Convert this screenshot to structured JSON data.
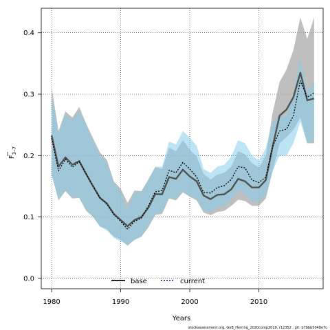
{
  "chart_data": {
    "type": "line",
    "xlabel": "Years",
    "ylabel_main": "F",
    "ylabel_sub": "3–7",
    "xlim": [
      1978.5,
      2019.3
    ],
    "ylim": [
      -0.017,
      0.44
    ],
    "x_ticks": [
      1980,
      1990,
      2000,
      2010
    ],
    "y_ticks": [
      0.0,
      0.1,
      0.2,
      0.3,
      0.4
    ],
    "y_tick_labels": [
      "0.0",
      "0.1",
      "0.2",
      "0.3",
      "0.4"
    ],
    "grid": true,
    "legend_position": "bottom-center",
    "colors": {
      "base_band": "#a9a9a9",
      "current_band": "#87ceeb",
      "base_line": "#000000",
      "current_line": "#1b3a6b",
      "grid": "#000000"
    },
    "x": [
      1980,
      1981,
      1982,
      1983,
      1984,
      1985,
      1986,
      1987,
      1988,
      1989,
      1990,
      1991,
      1992,
      1993,
      1994,
      1995,
      1996,
      1997,
      1998,
      1999,
      2000,
      2001,
      2002,
      2003,
      2004,
      2005,
      2006,
      2007,
      2008,
      2009,
      2010,
      2011,
      2012,
      2013,
      2014,
      2015,
      2016,
      2017,
      2018
    ],
    "series": [
      {
        "name": "base",
        "values": [
          0.233,
          0.182,
          0.197,
          0.185,
          0.191,
          0.17,
          0.15,
          0.131,
          0.122,
          0.105,
          0.095,
          0.085,
          0.095,
          0.1,
          0.115,
          0.137,
          0.137,
          0.165,
          0.162,
          0.177,
          0.166,
          0.158,
          0.135,
          0.129,
          0.136,
          0.137,
          0.145,
          0.162,
          0.158,
          0.148,
          0.148,
          0.16,
          0.215,
          0.265,
          0.275,
          0.295,
          0.335,
          0.29,
          0.293
        ],
        "lower": [
          0.17,
          0.127,
          0.142,
          0.13,
          0.131,
          0.11,
          0.1,
          0.085,
          0.08,
          0.068,
          0.063,
          0.053,
          0.063,
          0.068,
          0.083,
          0.103,
          0.105,
          0.13,
          0.127,
          0.14,
          0.133,
          0.127,
          0.107,
          0.103,
          0.108,
          0.11,
          0.118,
          0.128,
          0.126,
          0.118,
          0.118,
          0.13,
          0.175,
          0.22,
          0.23,
          0.242,
          0.262,
          0.22,
          0.22
        ],
        "upper": [
          0.312,
          0.24,
          0.272,
          0.262,
          0.279,
          0.252,
          0.228,
          0.205,
          0.193,
          0.158,
          0.146,
          0.123,
          0.143,
          0.142,
          0.161,
          0.181,
          0.178,
          0.213,
          0.207,
          0.225,
          0.21,
          0.198,
          0.17,
          0.161,
          0.169,
          0.172,
          0.182,
          0.207,
          0.202,
          0.188,
          0.18,
          0.2,
          0.27,
          0.32,
          0.34,
          0.372,
          0.425,
          0.39,
          0.425
        ]
      },
      {
        "name": "current",
        "values": [
          0.228,
          0.175,
          0.194,
          0.181,
          0.19,
          0.17,
          0.15,
          0.131,
          0.121,
          0.104,
          0.093,
          0.08,
          0.093,
          0.098,
          0.118,
          0.141,
          0.143,
          0.176,
          0.172,
          0.189,
          0.178,
          0.165,
          0.14,
          0.139,
          0.148,
          0.151,
          0.161,
          0.182,
          0.18,
          0.16,
          0.156,
          0.165,
          0.215,
          0.24,
          0.243,
          0.265,
          0.322,
          0.295,
          0.302
        ],
        "lower": [
          0.168,
          0.128,
          0.144,
          0.131,
          0.133,
          0.112,
          0.1,
          0.084,
          0.078,
          0.066,
          0.06,
          0.055,
          0.062,
          0.068,
          0.086,
          0.104,
          0.109,
          0.133,
          0.128,
          0.142,
          0.134,
          0.129,
          0.11,
          0.108,
          0.116,
          0.118,
          0.127,
          0.142,
          0.138,
          0.125,
          0.125,
          0.135,
          0.175,
          0.2,
          0.2,
          0.22,
          0.255,
          0.22,
          0.225
        ],
        "upper": [
          0.3,
          0.236,
          0.268,
          0.258,
          0.272,
          0.25,
          0.225,
          0.2,
          0.19,
          0.157,
          0.141,
          0.112,
          0.14,
          0.14,
          0.16,
          0.182,
          0.182,
          0.223,
          0.218,
          0.24,
          0.229,
          0.216,
          0.178,
          0.172,
          0.182,
          0.185,
          0.198,
          0.225,
          0.22,
          0.2,
          0.192,
          0.212,
          0.255,
          0.265,
          0.265,
          0.3,
          0.36,
          0.305,
          0.32
        ]
      }
    ],
    "legend": [
      {
        "label": "base",
        "style": "solid"
      },
      {
        "label": "current",
        "style": "dotted"
      }
    ],
    "footer": "stockassessment.org, GoB_Herring_2020comp2019, r12352 , git: b7bbb5048e7c"
  }
}
